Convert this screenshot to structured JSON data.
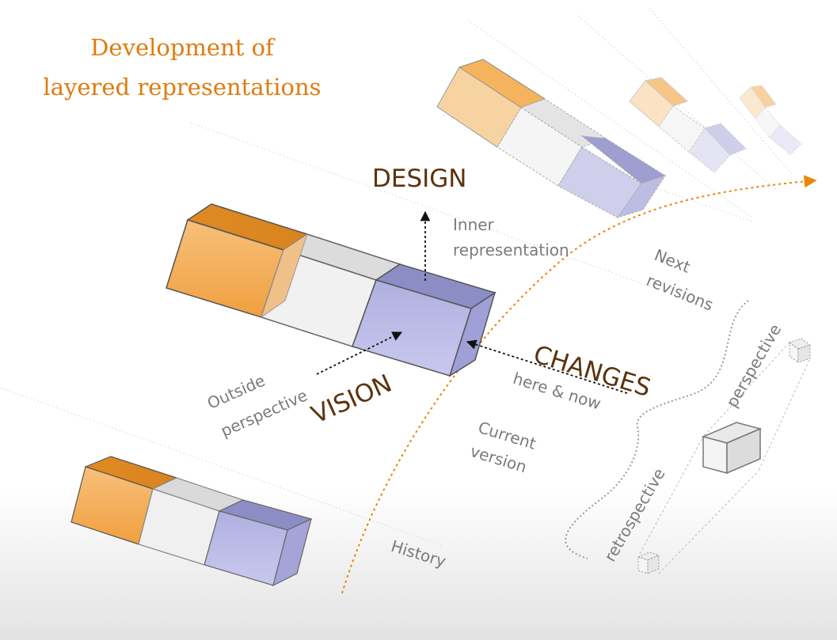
{
  "title": {
    "line1": "Development of",
    "line2": "layered representations"
  },
  "labels": {
    "design": "DESIGN",
    "inner_line1": "Inner",
    "inner_line2": "representation",
    "changes": "CHANGES",
    "here_now": "here & now",
    "vision": "VISION",
    "outside_line1": "Outside",
    "outside_line2": "perspective",
    "current_line1": "Current",
    "current_line2": "version",
    "next_line1": "Next",
    "next_line2": "revisions",
    "history": "History",
    "perspective": "perspective",
    "retrospective": "retrospective"
  },
  "colors": {
    "orange": "#f2a64a",
    "lavender": "#a8a8de",
    "accent": "#e8860a",
    "heading": "#5b330d",
    "label": "#7b7b7b"
  }
}
